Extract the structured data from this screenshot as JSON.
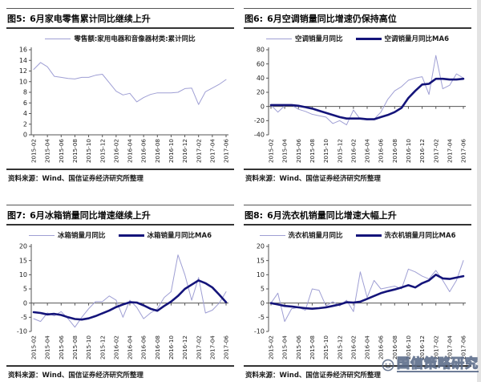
{
  "watermark": {
    "text": "国信策略研究",
    "color": "#5a6a88"
  },
  "palette": {
    "light_series": "#9f9fd4",
    "dark_series": "#14147a",
    "axis": "#555555"
  },
  "chart_data": [
    {
      "id": "fig5",
      "type": "line",
      "fig_label": "图5:",
      "title": "6月家电零售累计同比继续上升",
      "source": "资料来源：Wind、国信证券经济研究所整理",
      "x_tick_labels": [
        "2015-02",
        "2015-04",
        "2015-06",
        "2015-08",
        "2015-10",
        "2015-12",
        "2016-02",
        "2016-04",
        "2016-06",
        "2016-08",
        "2016-10",
        "2016-12",
        "2017-02",
        "2017-04",
        "2017-06"
      ],
      "ylim": [
        0,
        16
      ],
      "ytick_step": 2,
      "grid": false,
      "legend_position": "top",
      "series": [
        {
          "name": "零售额:家用电器和音像器材类:累计同比",
          "color": "#9f9fd4",
          "width": 1,
          "values": [
            12.3,
            13.6,
            12.8,
            11.0,
            10.8,
            10.6,
            10.5,
            10.8,
            10.8,
            11.2,
            11.4,
            9.8,
            8.2,
            7.5,
            7.8,
            6.2,
            7.0,
            7.6,
            7.9,
            7.9,
            7.9,
            8.0,
            8.7,
            8.8,
            5.7,
            8.1,
            8.8,
            9.5,
            10.4
          ]
        }
      ]
    },
    {
      "id": "fig6",
      "type": "line",
      "fig_label": "图6:",
      "title": "6月空调销量同比增速仍保持高位",
      "source": "资料来源：Wind、国信证券经济研究所整理",
      "x_tick_labels": [
        "2015-02",
        "2015-04",
        "2015-06",
        "2015-08",
        "2015-10",
        "2015-12",
        "2016-02",
        "2016-04",
        "2016-06",
        "2016-08",
        "2016-10",
        "2016-12",
        "2017-02",
        "2017-04",
        "2017-06"
      ],
      "ylim": [
        -40,
        80
      ],
      "ytick_step": 20,
      "grid": false,
      "legend_position": "top",
      "series": [
        {
          "name": "空调销量月同比",
          "color": "#9f9fd4",
          "width": 1,
          "values": [
            2,
            -8,
            1,
            2,
            -4,
            -7,
            -11,
            -13,
            -15,
            -24,
            -20,
            -26,
            -5,
            -18,
            -19,
            -18,
            -8,
            10,
            22,
            28,
            37,
            40,
            42,
            17,
            72,
            25,
            30,
            46,
            40
          ]
        },
        {
          "name": "空调销量月同比MA6",
          "color": "#14147a",
          "width": 2.6,
          "values": [
            2,
            2,
            2,
            2,
            1,
            -1,
            -3,
            -6,
            -9,
            -12,
            -15,
            -17,
            -17,
            -17,
            -18,
            -18,
            -15,
            -12,
            -8,
            -2,
            12,
            22,
            31,
            32,
            39,
            39,
            38,
            38,
            39
          ]
        }
      ]
    },
    {
      "id": "fig7",
      "type": "line",
      "fig_label": "图7:",
      "title": "6月冰箱销量同比增速继续上升",
      "source": "资料来源：Wind、国信证券经济研究所整理",
      "x_tick_labels": [
        "2015-02",
        "2015-04",
        "2015-06",
        "2015-08",
        "2015-10",
        "2015-12",
        "2016-02",
        "2016-04",
        "2016-06",
        "2016-08",
        "2016-10",
        "2016-12",
        "2017-02",
        "2017-04",
        "2017-06"
      ],
      "ylim": [
        -10,
        20
      ],
      "ytick_step": 5,
      "grid": false,
      "legend_position": "top",
      "series": [
        {
          "name": "冰箱销量月同比",
          "color": "#9f9fd4",
          "width": 1,
          "values": [
            -5.5,
            -6.5,
            -3.5,
            -4.5,
            -3,
            -5.5,
            -8.5,
            -5,
            -2,
            0.5,
            0.5,
            2.5,
            1,
            -5,
            1,
            -1.5,
            -5.5,
            -3.5,
            -2,
            2,
            4,
            17,
            10,
            1,
            9,
            -3.5,
            -2.5,
            0,
            4
          ]
        },
        {
          "name": "冰箱销量月同比MA6",
          "color": "#14147a",
          "width": 2.6,
          "values": [
            -3.2,
            -3.5,
            -4,
            -3.8,
            -4.2,
            -5,
            -5.6,
            -5.8,
            -5.4,
            -4.6,
            -3.6,
            -2.6,
            -1.4,
            -0.5,
            0.3,
            0.2,
            -0.8,
            -2,
            -2.7,
            -1,
            0.5,
            2.5,
            5,
            6.5,
            8,
            7,
            5.5,
            3,
            0.3
          ]
        }
      ]
    },
    {
      "id": "fig8",
      "type": "line",
      "fig_label": "图8:",
      "title": "6月洗衣机销量同比增速大幅上升",
      "source": "资料来源：Wind、国信证券经济研究所整理",
      "x_tick_labels": [
        "2015-02",
        "2015-04",
        "2015-06",
        "2015-08",
        "2015-10",
        "2015-12",
        "2016-02",
        "2016-04",
        "2016-06",
        "2016-08",
        "2016-10",
        "2016-12",
        "2017-02",
        "2017-04",
        "2017-06"
      ],
      "ylim": [
        -10,
        20
      ],
      "ytick_step": 5,
      "grid": false,
      "legend_position": "top",
      "series": [
        {
          "name": "洗衣机销量月同比",
          "color": "#9f9fd4",
          "width": 1,
          "values": [
            0,
            3.5,
            -6.5,
            -2,
            -1.5,
            -2.5,
            5,
            4.5,
            -1,
            0.5,
            -1,
            1,
            -3,
            11,
            2,
            8,
            5,
            5.5,
            6,
            5,
            12,
            11,
            9.5,
            8.5,
            11.5,
            8,
            4,
            8,
            15
          ]
        },
        {
          "name": "洗衣机销量月同比MA6",
          "color": "#14147a",
          "width": 2.6,
          "values": [
            0,
            -0.5,
            -1,
            -1.2,
            -1.5,
            -1.8,
            -2,
            -1.8,
            -1.5,
            -1,
            -0.5,
            0.3,
            0.2,
            0.5,
            1.5,
            2.5,
            3.5,
            4.2,
            4.8,
            5.5,
            6.3,
            5.5,
            7,
            8,
            10,
            8.7,
            8.5,
            9,
            9.5
          ]
        }
      ]
    }
  ]
}
